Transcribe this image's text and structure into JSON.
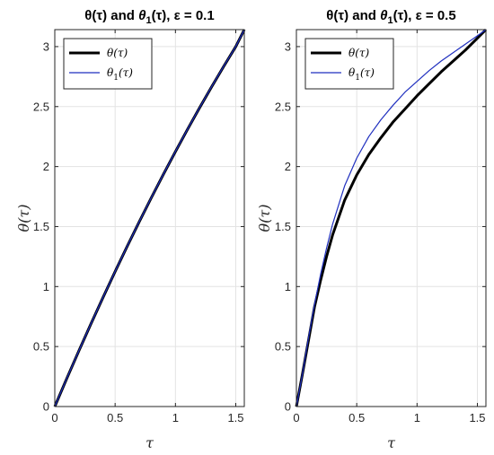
{
  "chart_data": [
    {
      "type": "line",
      "title": "θ(τ) and θ₁(τ), ε = 0.1",
      "title_parts": {
        "a": "θ(τ) and ",
        "b": "θ",
        "sub": "1",
        "c": "(τ), ε = 0.1"
      },
      "xlabel": "τ",
      "ylabel": "θ(τ)",
      "xlim": [
        0,
        1.5708
      ],
      "ylim": [
        0,
        3.1416
      ],
      "xticks": [
        0,
        0.5,
        1,
        1.5
      ],
      "xtick_labels": [
        "0",
        "0.5",
        "1",
        "1.5"
      ],
      "yticks": [
        0,
        0.5,
        1,
        1.5,
        2,
        2.5,
        3
      ],
      "ytick_labels": [
        "0",
        "0.5",
        "1",
        "1.5",
        "2",
        "2.5",
        "3"
      ],
      "grid": true,
      "legend_position": "top-left",
      "series": [
        {
          "name": "θ(τ)",
          "label_main": "θ(τ)",
          "color": "#000000",
          "x": [
            0,
            0.1,
            0.2,
            0.3,
            0.4,
            0.5,
            0.6,
            0.7,
            0.8,
            0.9,
            1.0,
            1.1,
            1.2,
            1.3,
            1.4,
            1.5,
            1.5708
          ],
          "y": [
            0,
            0.235,
            0.465,
            0.69,
            0.91,
            1.125,
            1.335,
            1.54,
            1.74,
            1.935,
            2.125,
            2.31,
            2.49,
            2.665,
            2.835,
            3.0,
            3.1416
          ]
        },
        {
          "name": "θ₁(τ)",
          "label_main": "θ",
          "label_sub": "1",
          "label_tail": "(τ)",
          "color": "#1f2fbf",
          "x": [
            0,
            0.1,
            0.2,
            0.3,
            0.4,
            0.5,
            0.6,
            0.7,
            0.8,
            0.9,
            1.0,
            1.1,
            1.2,
            1.3,
            1.4,
            1.5,
            1.5708
          ],
          "y": [
            0,
            0.236,
            0.466,
            0.691,
            0.911,
            1.126,
            1.336,
            1.541,
            1.741,
            1.936,
            2.126,
            2.311,
            2.491,
            2.666,
            2.836,
            3.001,
            3.1416
          ]
        }
      ]
    },
    {
      "type": "line",
      "title": "θ(τ) and θ₁(τ), ε = 0.5",
      "title_parts": {
        "a": "θ(τ) and ",
        "b": "θ",
        "sub": "1",
        "c": "(τ), ε = 0.5"
      },
      "xlabel": "τ",
      "ylabel": "θ(τ)",
      "xlim": [
        0,
        1.5708
      ],
      "ylim": [
        0,
        3.1416
      ],
      "xticks": [
        0,
        0.5,
        1,
        1.5
      ],
      "xtick_labels": [
        "0",
        "0.5",
        "1",
        "1.5"
      ],
      "yticks": [
        0,
        0.5,
        1,
        1.5,
        2,
        2.5,
        3
      ],
      "ytick_labels": [
        "0",
        "0.5",
        "1",
        "1.5",
        "2",
        "2.5",
        "3"
      ],
      "grid": true,
      "legend_position": "top-left",
      "series": [
        {
          "name": "θ(τ)",
          "label_main": "θ(τ)",
          "color": "#000000",
          "x": [
            0,
            0.05,
            0.1,
            0.15,
            0.2,
            0.25,
            0.3,
            0.4,
            0.5,
            0.6,
            0.7,
            0.8,
            0.9,
            1.0,
            1.1,
            1.2,
            1.3,
            1.4,
            1.5,
            1.5708
          ],
          "y": [
            0,
            0.27,
            0.55,
            0.83,
            1.05,
            1.25,
            1.43,
            1.72,
            1.93,
            2.1,
            2.24,
            2.37,
            2.48,
            2.59,
            2.69,
            2.79,
            2.88,
            2.97,
            3.07,
            3.1416
          ]
        },
        {
          "name": "θ₁(τ)",
          "label_main": "θ",
          "label_sub": "1",
          "label_tail": "(τ)",
          "color": "#1f2fbf",
          "x": [
            0,
            0.05,
            0.1,
            0.15,
            0.2,
            0.25,
            0.3,
            0.4,
            0.5,
            0.6,
            0.7,
            0.8,
            0.9,
            1.0,
            1.1,
            1.2,
            1.3,
            1.4,
            1.5,
            1.5708
          ],
          "y": [
            0,
            0.27,
            0.57,
            0.85,
            1.1,
            1.32,
            1.52,
            1.84,
            2.07,
            2.25,
            2.39,
            2.51,
            2.62,
            2.71,
            2.8,
            2.88,
            2.95,
            3.02,
            3.09,
            3.1416
          ]
        }
      ]
    }
  ]
}
